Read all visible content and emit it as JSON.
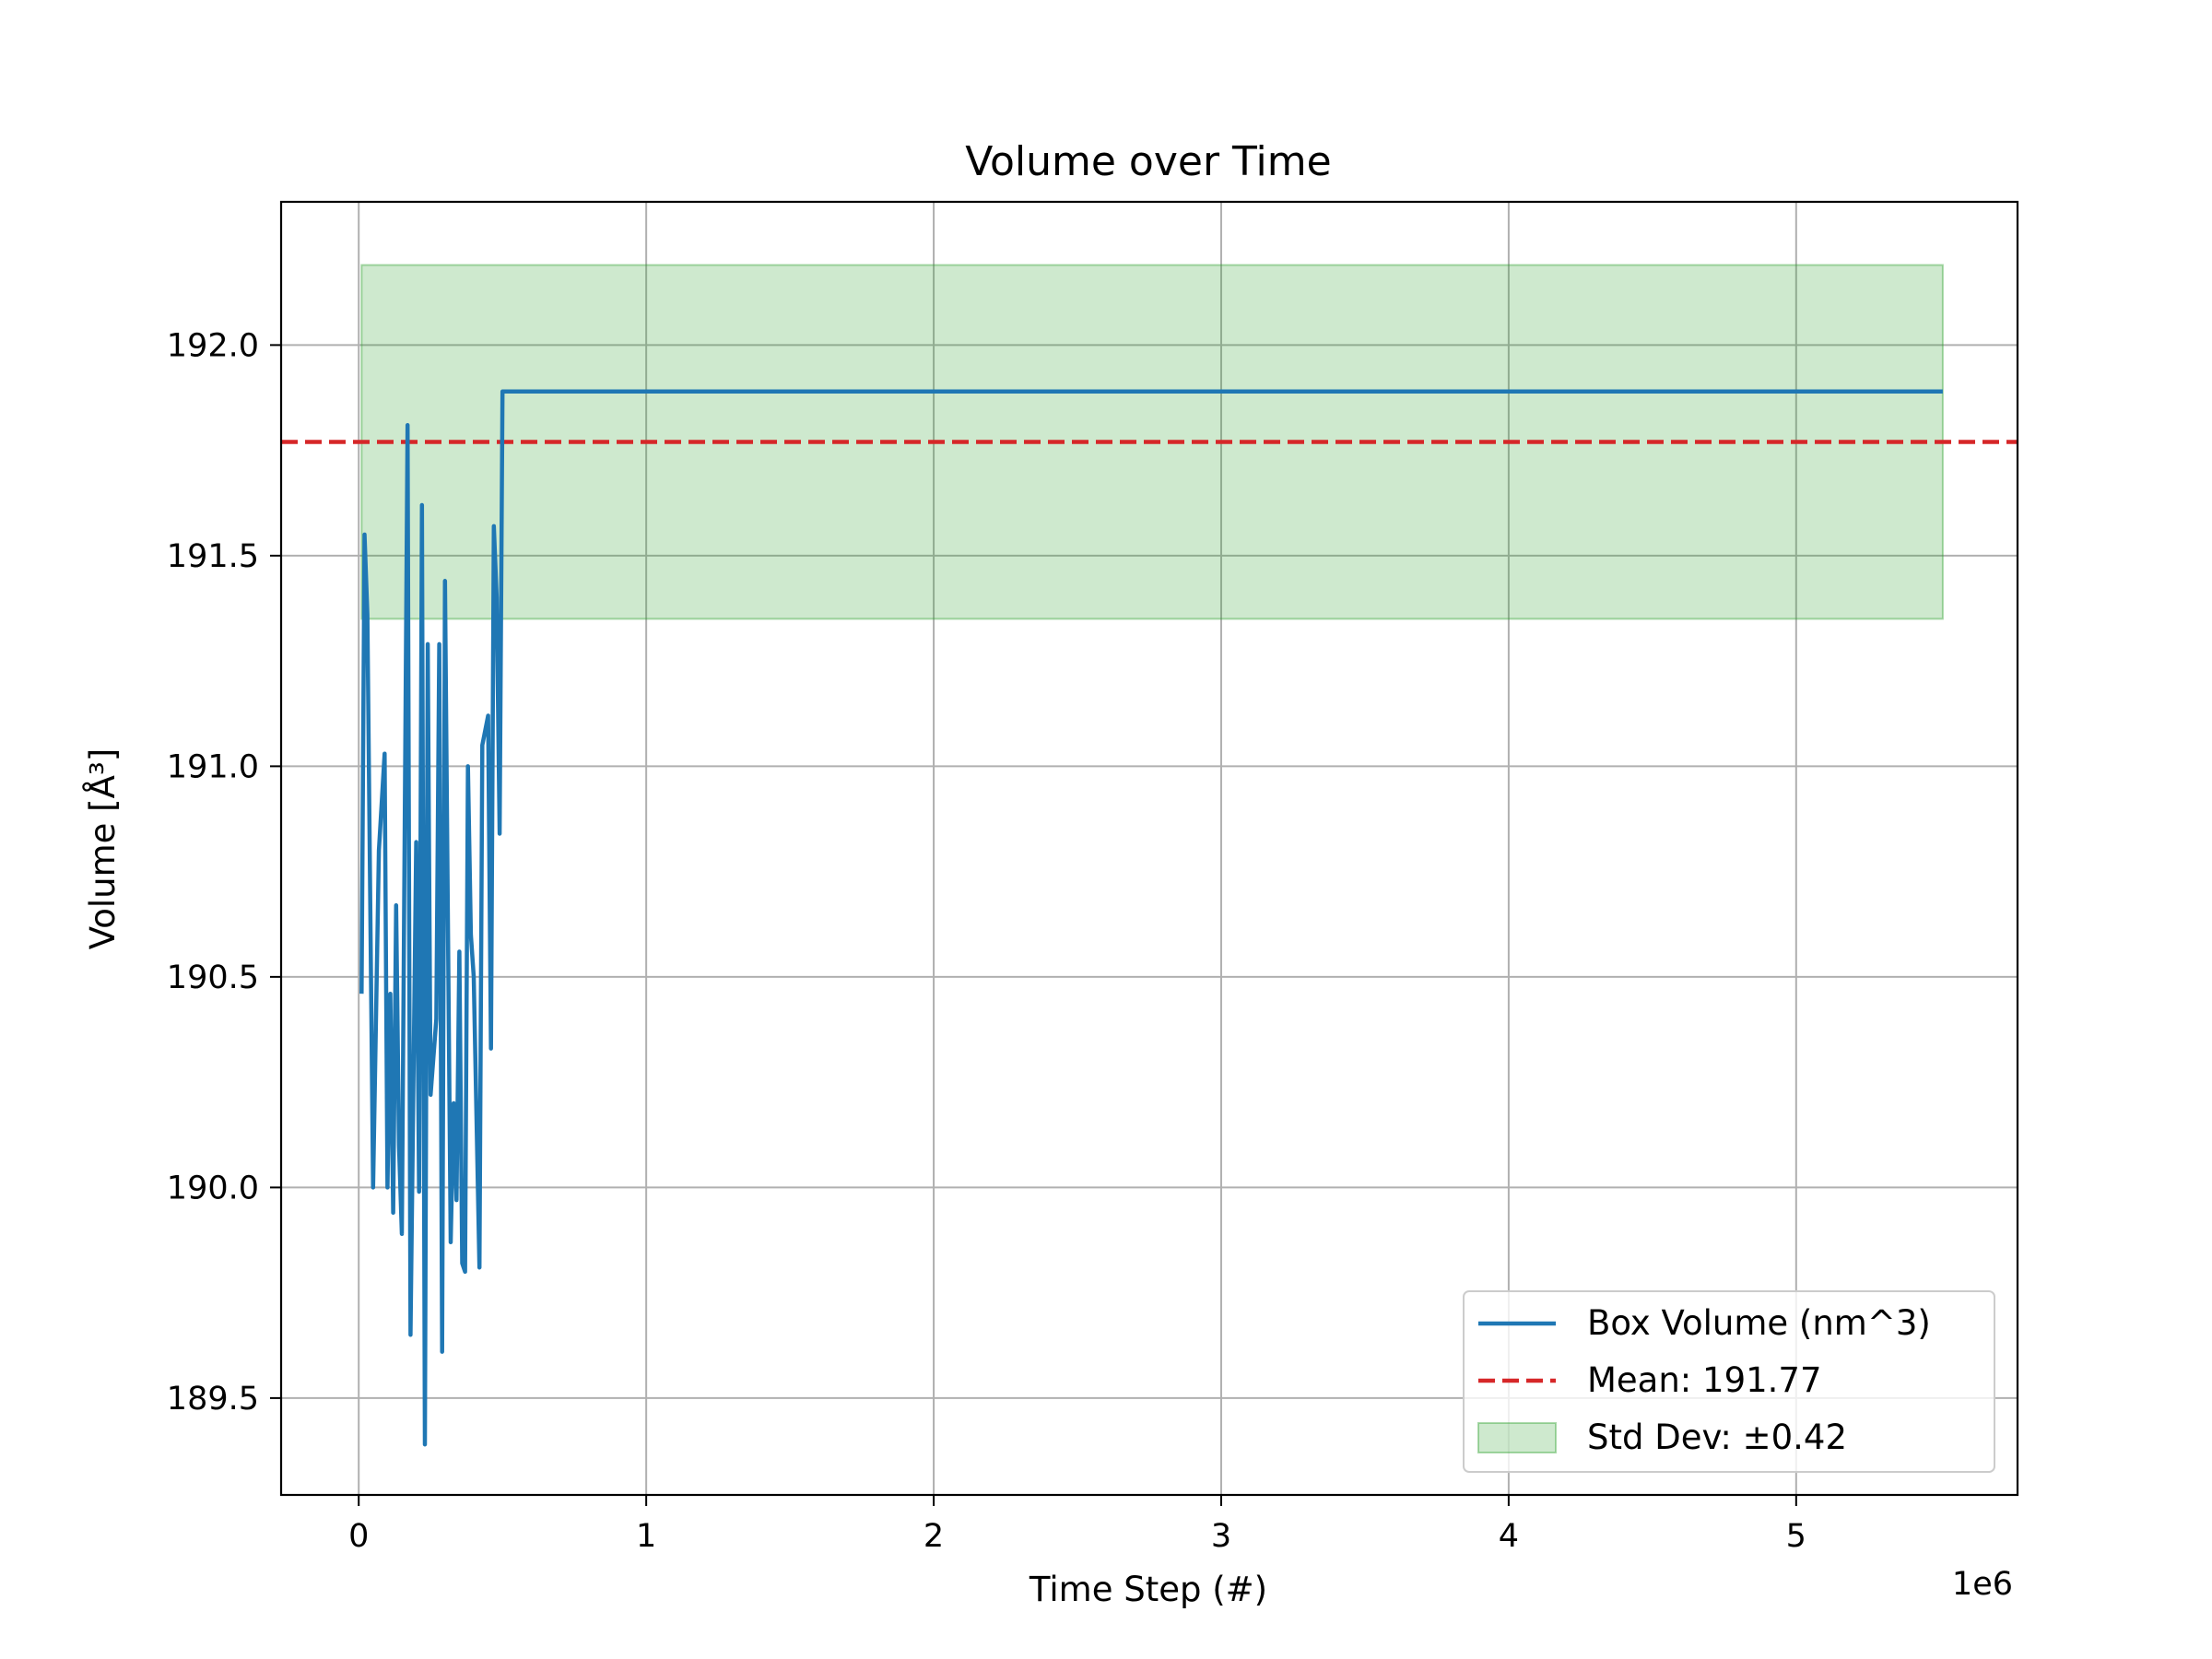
{
  "chart_data": {
    "type": "line",
    "title": "Volume over Time",
    "xlabel": "Time Step (#)",
    "ylabel": "Volume [Å³]",
    "x_offset_label": "1e6",
    "xlim": [
      -0.27,
      5.77
    ],
    "ylim": [
      189.27,
      192.34
    ],
    "xticks": [
      0,
      1,
      2,
      3,
      4,
      5
    ],
    "xtick_labels": [
      "0",
      "1",
      "2",
      "3",
      "4",
      "5"
    ],
    "yticks": [
      189.5,
      190.0,
      190.5,
      191.0,
      191.5,
      192.0
    ],
    "ytick_labels": [
      "189.5",
      "190.0",
      "190.5",
      "191.0",
      "191.5",
      "192.0"
    ],
    "grid": true,
    "legend_position": "lower-right",
    "series": [
      {
        "name": "Box Volume (nm^3)",
        "color": "#1f77b4",
        "x": [
          0.01,
          0.02,
          0.03,
          0.05,
          0.07,
          0.09,
          0.1,
          0.11,
          0.12,
          0.13,
          0.14,
          0.15,
          0.17,
          0.18,
          0.2,
          0.21,
          0.22,
          0.23,
          0.24,
          0.25,
          0.27,
          0.28,
          0.29,
          0.3,
          0.32,
          0.33,
          0.34,
          0.35,
          0.36,
          0.37,
          0.38,
          0.39,
          0.4,
          0.42,
          0.43,
          0.45,
          0.46,
          0.47,
          0.48,
          0.49,
          0.5,
          0.51,
          1.0,
          2.0,
          3.0,
          4.0,
          5.0,
          5.51
        ],
        "y": [
          190.46,
          191.55,
          191.36,
          190.0,
          190.8,
          191.03,
          190.0,
          190.46,
          189.94,
          190.67,
          190.1,
          189.89,
          191.81,
          189.65,
          190.82,
          189.99,
          191.62,
          189.39,
          191.29,
          190.22,
          190.4,
          191.29,
          189.61,
          191.44,
          189.87,
          190.2,
          189.97,
          190.56,
          189.82,
          189.8,
          191.0,
          190.6,
          190.5,
          189.81,
          191.05,
          191.12,
          190.33,
          191.57,
          191.4,
          190.84,
          191.89,
          191.89,
          191.89,
          191.89,
          191.89,
          191.89,
          191.89,
          191.89
        ]
      },
      {
        "name": "Mean: 191.77",
        "color": "#d62728",
        "style": "dashed",
        "value": 191.77
      },
      {
        "name": "Std Dev: ±0.42",
        "color": "#2ca02c",
        "style": "band",
        "x_range": [
          0.01,
          5.51
        ],
        "y_range": [
          191.35,
          192.19
        ]
      }
    ]
  }
}
